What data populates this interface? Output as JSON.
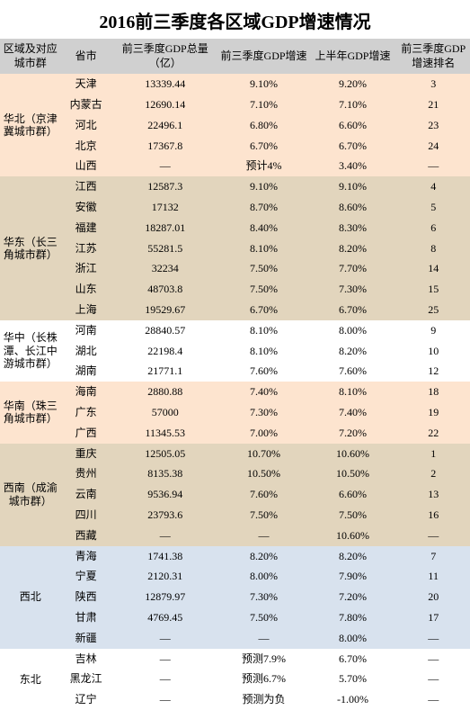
{
  "title": "2016前三季度各区域GDP增速情况",
  "title_fontsize": 20,
  "columns": [
    {
      "key": "region",
      "label": "区域及对应城市群"
    },
    {
      "key": "province",
      "label": "省市"
    },
    {
      "key": "gdp",
      "label": "前三季度GDP总量（亿）"
    },
    {
      "key": "q3rate",
      "label": "前三季度GDP增速"
    },
    {
      "key": "h1rate",
      "label": "上半年GDP增速"
    },
    {
      "key": "rank",
      "label": "前三季度GDP增速排名"
    }
  ],
  "header_bg": "#d0d0d0",
  "regions": [
    {
      "name": "华北（京津冀城市群）",
      "bg": "#fde4cf",
      "rows": [
        {
          "province": "天津",
          "gdp": "13339.44",
          "q3rate": "9.10%",
          "h1rate": "9.20%",
          "rank": "3"
        },
        {
          "province": "内蒙古",
          "gdp": "12690.14",
          "q3rate": "7.10%",
          "h1rate": "7.10%",
          "rank": "21"
        },
        {
          "province": "河北",
          "gdp": "22496.1",
          "q3rate": "6.80%",
          "h1rate": "6.60%",
          "rank": "23"
        },
        {
          "province": "北京",
          "gdp": "17367.8",
          "q3rate": "6.70%",
          "h1rate": "6.70%",
          "rank": "24"
        },
        {
          "province": "山西",
          "gdp": "—",
          "q3rate": "预计4%",
          "h1rate": "3.40%",
          "rank": "—"
        }
      ]
    },
    {
      "name": "华东（长三角城市群）",
      "bg": "#e2d5bd",
      "rows": [
        {
          "province": "江西",
          "gdp": "12587.3",
          "q3rate": "9.10%",
          "h1rate": "9.10%",
          "rank": "4"
        },
        {
          "province": "安徽",
          "gdp": "17132",
          "q3rate": "8.70%",
          "h1rate": "8.60%",
          "rank": "5"
        },
        {
          "province": "福建",
          "gdp": "18287.01",
          "q3rate": "8.40%",
          "h1rate": "8.30%",
          "rank": "6"
        },
        {
          "province": "江苏",
          "gdp": "55281.5",
          "q3rate": "8.10%",
          "h1rate": "8.20%",
          "rank": "8"
        },
        {
          "province": "浙江",
          "gdp": "32234",
          "q3rate": "7.50%",
          "h1rate": "7.70%",
          "rank": "14"
        },
        {
          "province": "山东",
          "gdp": "48703.8",
          "q3rate": "7.50%",
          "h1rate": "7.30%",
          "rank": "15"
        },
        {
          "province": "上海",
          "gdp": "19529.67",
          "q3rate": "6.70%",
          "h1rate": "6.70%",
          "rank": "25"
        }
      ]
    },
    {
      "name": "华中（长株潭、长江中游城市群）",
      "bg": "#ffffff",
      "rows": [
        {
          "province": "河南",
          "gdp": "28840.57",
          "q3rate": "8.10%",
          "h1rate": "8.00%",
          "rank": "9"
        },
        {
          "province": "湖北",
          "gdp": "22198.4",
          "q3rate": "8.10%",
          "h1rate": "8.20%",
          "rank": "10"
        },
        {
          "province": "湖南",
          "gdp": "21771.1",
          "q3rate": "7.60%",
          "h1rate": "7.60%",
          "rank": "12"
        }
      ]
    },
    {
      "name": "华南（珠三角城市群）",
      "bg": "#fde4cf",
      "rows": [
        {
          "province": "海南",
          "gdp": "2880.88",
          "q3rate": "7.40%",
          "h1rate": "8.10%",
          "rank": "18"
        },
        {
          "province": "广东",
          "gdp": "57000",
          "q3rate": "7.30%",
          "h1rate": "7.40%",
          "rank": "19"
        },
        {
          "province": "广西",
          "gdp": "11345.53",
          "q3rate": "7.00%",
          "h1rate": "7.20%",
          "rank": "22"
        }
      ]
    },
    {
      "name": "西南（成渝城市群）",
      "bg": "#e2d5bd",
      "rows": [
        {
          "province": "重庆",
          "gdp": "12505.05",
          "q3rate": "10.70%",
          "h1rate": "10.60%",
          "rank": "1"
        },
        {
          "province": "贵州",
          "gdp": "8135.38",
          "q3rate": "10.50%",
          "h1rate": "10.50%",
          "rank": "2"
        },
        {
          "province": "云南",
          "gdp": "9536.94",
          "q3rate": "7.60%",
          "h1rate": "6.60%",
          "rank": "13"
        },
        {
          "province": "四川",
          "gdp": "23793.6",
          "q3rate": "7.50%",
          "h1rate": "7.50%",
          "rank": "16"
        },
        {
          "province": "西藏",
          "gdp": "—",
          "q3rate": "—",
          "h1rate": "10.60%",
          "rank": "—"
        }
      ]
    },
    {
      "name": "西北",
      "bg": "#d8e2ee",
      "rows": [
        {
          "province": "青海",
          "gdp": "1741.38",
          "q3rate": "8.20%",
          "h1rate": "8.20%",
          "rank": "7"
        },
        {
          "province": "宁夏",
          "gdp": "2120.31",
          "q3rate": "8.00%",
          "h1rate": "7.90%",
          "rank": "11"
        },
        {
          "province": "陕西",
          "gdp": "12879.97",
          "q3rate": "7.30%",
          "h1rate": "7.20%",
          "rank": "20"
        },
        {
          "province": "甘肃",
          "gdp": "4769.45",
          "q3rate": "7.50%",
          "h1rate": "7.80%",
          "rank": "17"
        },
        {
          "province": "新疆",
          "gdp": "—",
          "q3rate": "—",
          "h1rate": "8.00%",
          "rank": "—"
        }
      ]
    },
    {
      "name": "东北",
      "bg": "#ffffff",
      "rows": [
        {
          "province": "吉林",
          "gdp": "—",
          "q3rate": "预测7.9%",
          "h1rate": "6.70%",
          "rank": "—"
        },
        {
          "province": "黑龙江",
          "gdp": "—",
          "q3rate": "预测6.7%",
          "h1rate": "5.70%",
          "rank": "—"
        },
        {
          "province": "辽宁",
          "gdp": "—",
          "q3rate": "预测为负",
          "h1rate": "-1.00%",
          "rank": "—"
        }
      ]
    }
  ]
}
